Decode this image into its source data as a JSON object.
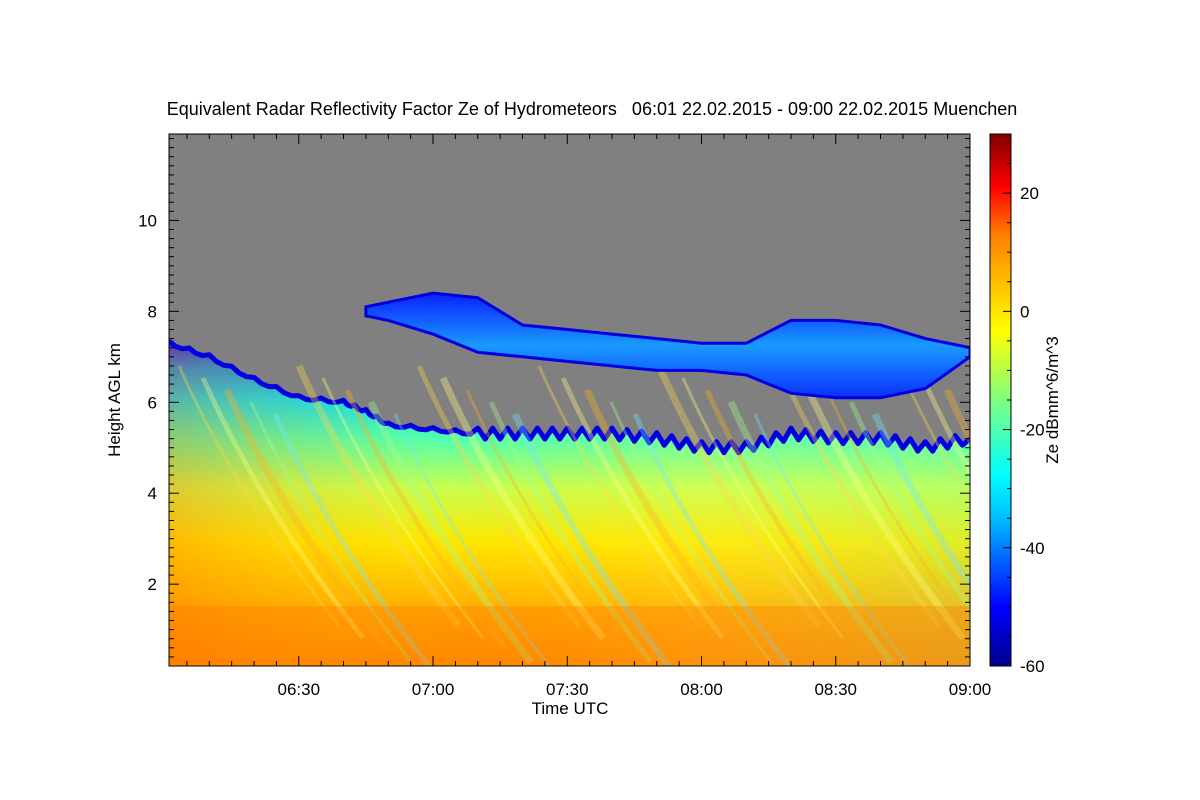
{
  "chart_data": {
    "type": "heatmap",
    "title": "Equivalent Radar Reflectivity Factor Ze of Hydrometeors   06:01 22.02.2015 - 09:00 22.02.2015 Muenchen",
    "xlabel": "Time UTC",
    "ylabel": "Height AGL km",
    "xlim": [
      "06:01",
      "09:00"
    ],
    "ylim": [
      0.2,
      11.9
    ],
    "x_ticks": [
      "06:30",
      "07:00",
      "07:30",
      "08:00",
      "08:30",
      "09:00"
    ],
    "y_ticks": [
      2,
      4,
      6,
      8,
      10
    ],
    "grid": false,
    "no_signal_color": "#808080",
    "colorbar": {
      "label": "Ze dBmm^6/m^3",
      "min": -60,
      "max": 30,
      "ticks": [
        20,
        0,
        -20,
        -40,
        -60
      ],
      "colormap": [
        "#00008f",
        "#0000ff",
        "#00bfff",
        "#00ffff",
        "#7fff7f",
        "#ffff00",
        "#ffbf00",
        "#ff7f00",
        "#ff0000",
        "#7f0000"
      ]
    },
    "series": [
      {
        "x": [
          "06:01",
          "06:10",
          "06:20",
          "06:30",
          "06:40",
          "06:45",
          "06:50",
          "07:00",
          "07:10",
          "07:20",
          "07:30",
          "07:40",
          "07:50",
          "08:00",
          "08:10",
          "08:20",
          "08:30",
          "08:40",
          "08:50",
          "09:00"
        ],
        "cloud_top_km": [
          7.3,
          7.0,
          6.5,
          6.1,
          6.0,
          5.8,
          5.5,
          5.4,
          5.3,
          5.3,
          5.3,
          5.3,
          5.2,
          5.0,
          5.0,
          5.3,
          5.2,
          5.2,
          5.0,
          5.2
        ]
      },
      {
        "x": [
          "06:45",
          "06:50",
          "07:00",
          "07:10",
          "07:20",
          "07:30",
          "07:40",
          "07:50",
          "08:00",
          "08:10",
          "08:20",
          "08:30",
          "08:40",
          "08:50",
          "09:00"
        ],
        "layer_top_km": [
          8.1,
          8.2,
          8.4,
          8.3,
          7.7,
          7.6,
          7.5,
          7.4,
          7.3,
          7.3,
          7.8,
          7.8,
          7.7,
          7.4,
          7.2
        ],
        "layer_base_km": [
          7.9,
          7.8,
          7.5,
          7.1,
          7.0,
          6.9,
          6.8,
          6.7,
          6.7,
          6.6,
          6.2,
          6.1,
          6.1,
          6.3,
          7.0
        ]
      }
    ]
  }
}
